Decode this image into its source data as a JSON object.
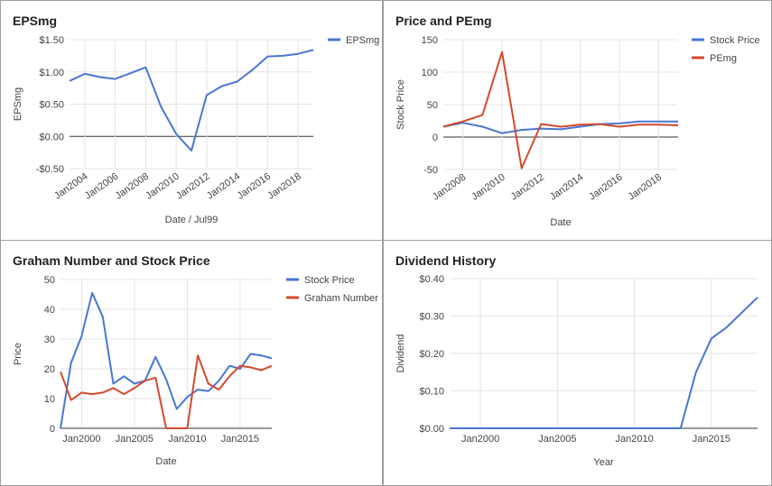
{
  "chart_data": [
    {
      "type": "line",
      "title": "EPSmg",
      "xlabel": "Date / Jul99",
      "ylabel": "EPSmg",
      "xlim": [
        2003,
        2019
      ],
      "ylim": [
        -0.5,
        1.5
      ],
      "yticks": [
        -0.5,
        0,
        0.5,
        1.0,
        1.5
      ],
      "ytick_labels": [
        "-$0.50",
        "$0.00",
        "$0.50",
        "$1.00",
        "$1.50"
      ],
      "xticks": [
        2004,
        2006,
        2008,
        2010,
        2012,
        2014,
        2016,
        2018
      ],
      "xtick_labels": [
        "Jan2004",
        "Jan2006",
        "Jan2008",
        "Jan2010",
        "Jan2012",
        "Jan2014",
        "Jan2016",
        "Jan2018"
      ],
      "x_rotated": true,
      "grid": true,
      "legend": "right",
      "series": [
        {
          "name": "EPSmg",
          "color": "#4a76d3",
          "x": [
            2003,
            2004,
            2005,
            2006,
            2007,
            2008,
            2009,
            2010,
            2011,
            2012,
            2013,
            2014,
            2015,
            2016,
            2017,
            2018,
            2019
          ],
          "y": [
            0.86,
            0.97,
            0.92,
            0.89,
            0.98,
            1.07,
            0.46,
            0.04,
            -0.22,
            0.64,
            0.78,
            0.85,
            1.03,
            1.24,
            1.25,
            1.28,
            1.34
          ]
        }
      ]
    },
    {
      "type": "line",
      "title": "Price and PEmg",
      "xlabel": "Date",
      "ylabel": "Stock Price",
      "xlim": [
        2007,
        2019
      ],
      "ylim": [
        -50,
        150
      ],
      "yticks": [
        -50,
        0,
        50,
        100,
        150
      ],
      "ytick_labels": [
        "-50",
        "0",
        "50",
        "100",
        "150"
      ],
      "xticks": [
        2008,
        2010,
        2012,
        2014,
        2016,
        2018
      ],
      "xtick_labels": [
        "Jan2008",
        "Jan2010",
        "Jan2012",
        "Jan2014",
        "Jan2016",
        "Jan2018"
      ],
      "x_rotated": true,
      "grid": true,
      "legend": "right",
      "series": [
        {
          "name": "Stock Price",
          "color": "#4a76d3",
          "x": [
            2007,
            2008,
            2009,
            2010,
            2011,
            2012,
            2013,
            2014,
            2015,
            2016,
            2017,
            2018,
            2019
          ],
          "y": [
            16,
            22,
            16,
            6,
            11,
            13,
            12,
            16,
            20,
            21,
            24,
            24,
            24
          ]
        },
        {
          "name": "PEmg",
          "color": "#d34a2d",
          "x": [
            2007,
            2008,
            2009,
            2010,
            2011,
            2012,
            2013,
            2014,
            2015,
            2016,
            2017,
            2018,
            2019
          ],
          "y": [
            16,
            24,
            34,
            131,
            -48,
            20,
            16,
            19,
            20,
            16,
            19,
            19,
            18
          ]
        }
      ]
    },
    {
      "type": "line",
      "title": "Graham Number and Stock Price",
      "xlabel": "Date",
      "ylabel": "Price",
      "xlim": [
        1998,
        2018
      ],
      "ylim": [
        0,
        50
      ],
      "yticks": [
        0,
        10,
        20,
        30,
        40,
        50
      ],
      "ytick_labels": [
        "0",
        "10",
        "20",
        "30",
        "40",
        "50"
      ],
      "xticks": [
        2000,
        2005,
        2010,
        2015
      ],
      "xtick_labels": [
        "Jan2000",
        "Jan2005",
        "Jan2010",
        "Jan2015"
      ],
      "x_rotated": false,
      "grid": true,
      "legend": "right",
      "series": [
        {
          "name": "Stock Price",
          "color": "#4a76d3",
          "x": [
            1998,
            1999,
            2000,
            2001,
            2002,
            2003,
            2004,
            2005,
            2006,
            2007,
            2008,
            2009,
            2010,
            2011,
            2012,
            2013,
            2014,
            2015,
            2016,
            2017,
            2018
          ],
          "y": [
            0,
            22,
            31,
            45.5,
            37.5,
            15,
            17.5,
            15,
            16,
            24,
            16.5,
            6.5,
            10.5,
            13,
            12.5,
            16,
            21,
            20,
            25,
            24.5,
            23.5
          ]
        },
        {
          "name": "Graham Number",
          "color": "#d34a2d",
          "x": [
            1998,
            1999,
            2000,
            2001,
            2002,
            2003,
            2004,
            2005,
            2006,
            2007,
            2008,
            2009,
            2010,
            2011,
            2012,
            2013,
            2014,
            2015,
            2016,
            2017,
            2018
          ],
          "y": [
            19,
            9.5,
            12,
            11.5,
            12,
            13.5,
            11.5,
            13.5,
            16,
            17,
            0,
            0,
            0,
            24.5,
            15,
            13,
            17.5,
            21,
            20.5,
            19.5,
            21
          ]
        }
      ]
    },
    {
      "type": "line",
      "title": "Dividend History",
      "xlabel": "Year",
      "ylabel": "Dividend",
      "xlim": [
        1998,
        2018
      ],
      "ylim": [
        0,
        0.4
      ],
      "yticks": [
        0,
        0.1,
        0.2,
        0.3,
        0.4
      ],
      "ytick_labels": [
        "$0.00",
        "$0.10",
        "$0.20",
        "$0.30",
        "$0.40"
      ],
      "xticks": [
        2000,
        2005,
        2010,
        2015
      ],
      "xtick_labels": [
        "Jan2000",
        "Jan2005",
        "Jan2010",
        "Jan2015"
      ],
      "x_rotated": false,
      "grid": true,
      "legend": "none",
      "series": [
        {
          "name": "",
          "color": "#4a76d3",
          "x": [
            1998,
            2013,
            2014,
            2015,
            2016,
            2017,
            2018
          ],
          "y": [
            0,
            0,
            0.15,
            0.24,
            0.27,
            0.31,
            0.35
          ]
        }
      ]
    }
  ]
}
